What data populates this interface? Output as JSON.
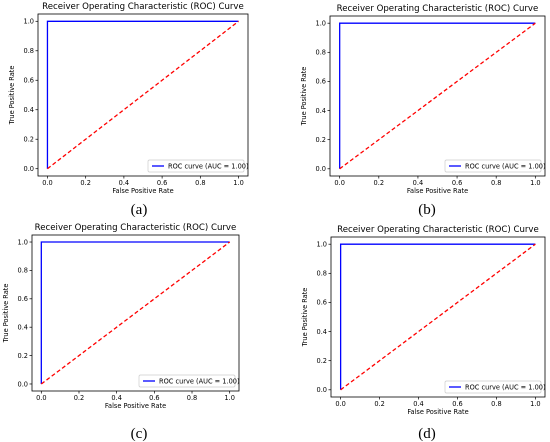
{
  "chart_data": [
    {
      "type": "line",
      "panel_label": "(a)",
      "title": "Receiver Operating Characteristic (ROC) Curve",
      "xlabel": "False Positive Rate",
      "ylabel": "True Positive Rate",
      "xlim": [
        0,
        1
      ],
      "ylim": [
        0,
        1
      ],
      "xticks": [
        "0.0",
        "0.2",
        "0.4",
        "0.6",
        "0.8",
        "1.0"
      ],
      "yticks": [
        "0.0",
        "0.2",
        "0.4",
        "0.6",
        "0.8",
        "1.0"
      ],
      "grid": false,
      "legend_position": "lower-right",
      "series": [
        {
          "name": "ROC curve (AUC = 1.00)",
          "color": "#0000ff",
          "style": "solid",
          "x": [
            0,
            0,
            1
          ],
          "y": [
            0,
            1,
            1
          ]
        },
        {
          "color": "#ff0000",
          "style": "dashed",
          "x": [
            0,
            1
          ],
          "y": [
            0,
            1
          ]
        }
      ]
    },
    {
      "type": "line",
      "panel_label": "(b)",
      "title": "Receiver Operating Characteristic (ROC) Curve",
      "xlabel": "False Positive Rate",
      "ylabel": "True Positive Rate",
      "xlim": [
        0,
        1
      ],
      "ylim": [
        0,
        1
      ],
      "xticks": [
        "0.0",
        "0.2",
        "0.4",
        "0.6",
        "0.8",
        "1.0"
      ],
      "yticks": [
        "0.0",
        "0.2",
        "0.4",
        "0.6",
        "0.8",
        "1.0"
      ],
      "grid": false,
      "legend_position": "lower-right",
      "series": [
        {
          "name": "ROC curve (AUC = 1.00)",
          "color": "#0000ff",
          "style": "solid",
          "x": [
            0,
            0,
            1
          ],
          "y": [
            0,
            1,
            1
          ]
        },
        {
          "color": "#ff0000",
          "style": "dashed",
          "x": [
            0,
            1
          ],
          "y": [
            0,
            1
          ]
        }
      ]
    },
    {
      "type": "line",
      "panel_label": "(c)",
      "title": "Receiver Operating Characteristic (ROC) Curve",
      "xlabel": "False Positive Rate",
      "ylabel": "True Positive Rate",
      "xlim": [
        0,
        1
      ],
      "ylim": [
        0,
        1
      ],
      "xticks": [
        "0.0",
        "0.2",
        "0.4",
        "0.6",
        "0.8",
        "1.0"
      ],
      "yticks": [
        "0.0",
        "0.2",
        "0.4",
        "0.6",
        "0.8",
        "1.0"
      ],
      "grid": false,
      "legend_position": "lower-right",
      "series": [
        {
          "name": "ROC curve (AUC = 1.00)",
          "color": "#0000ff",
          "style": "solid",
          "x": [
            0,
            0,
            1
          ],
          "y": [
            0,
            1,
            1
          ]
        },
        {
          "color": "#ff0000",
          "style": "dashed",
          "x": [
            0,
            1
          ],
          "y": [
            0,
            1
          ]
        }
      ]
    },
    {
      "type": "line",
      "panel_label": "(d)",
      "title": "Receiver Operating Characteristic (ROC) Curve",
      "xlabel": "False Positive Rate",
      "ylabel": "True Positive Rate",
      "xlim": [
        0,
        1
      ],
      "ylim": [
        0,
        1
      ],
      "xticks": [
        "0.0",
        "0.2",
        "0.4",
        "0.6",
        "0.8",
        "1.0"
      ],
      "yticks": [
        "0.0",
        "0.2",
        "0.4",
        "0.6",
        "0.8",
        "1.0"
      ],
      "grid": false,
      "legend_position": "lower-right",
      "series": [
        {
          "name": "ROC curve (AUC = 1.00)",
          "color": "#0000ff",
          "style": "solid",
          "x": [
            0,
            0,
            1
          ],
          "y": [
            0,
            1,
            1
          ]
        },
        {
          "color": "#ff0000",
          "style": "dashed",
          "x": [
            0,
            1
          ],
          "y": [
            0,
            1
          ]
        }
      ]
    }
  ]
}
